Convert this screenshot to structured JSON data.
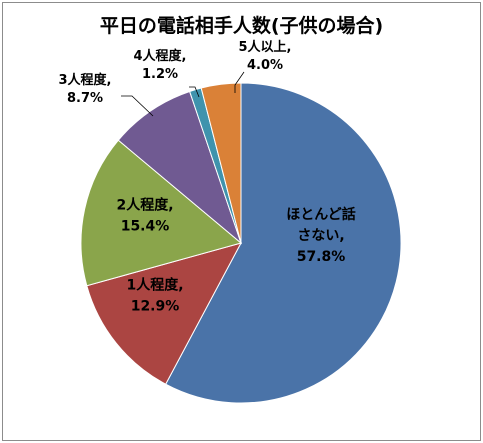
{
  "chart_data": {
    "type": "pie",
    "title": "平日の電話相手人数(子供の場合)",
    "categories": [
      "ほとんど話さない",
      "1人程度",
      "2人程度",
      "3人程度",
      "4人程度",
      "5人以上"
    ],
    "values": [
      57.8,
      12.9,
      15.4,
      8.7,
      1.2,
      4.0
    ],
    "value_labels": [
      "57.8%",
      "12.9%",
      "15.4%",
      "8.7%",
      "1.2%",
      "4.0%"
    ],
    "slice_labels": [
      [
        "ほとんど話",
        "さない,",
        "57.8%"
      ],
      [
        "1人程度,",
        "12.9%"
      ],
      [
        "2人程度,",
        "15.4%"
      ],
      [
        "3人程度,",
        "8.7%"
      ],
      [
        "4人程度,",
        "1.2%"
      ],
      [
        "5人以上,",
        "4.0%"
      ]
    ],
    "colors": [
      "#4a73a8",
      "#ab4542",
      "#8aa54b",
      "#705a92",
      "#3f93ad",
      "#da8137"
    ],
    "legend": "none",
    "start_angle_deg": 0,
    "direction": "clockwise"
  }
}
